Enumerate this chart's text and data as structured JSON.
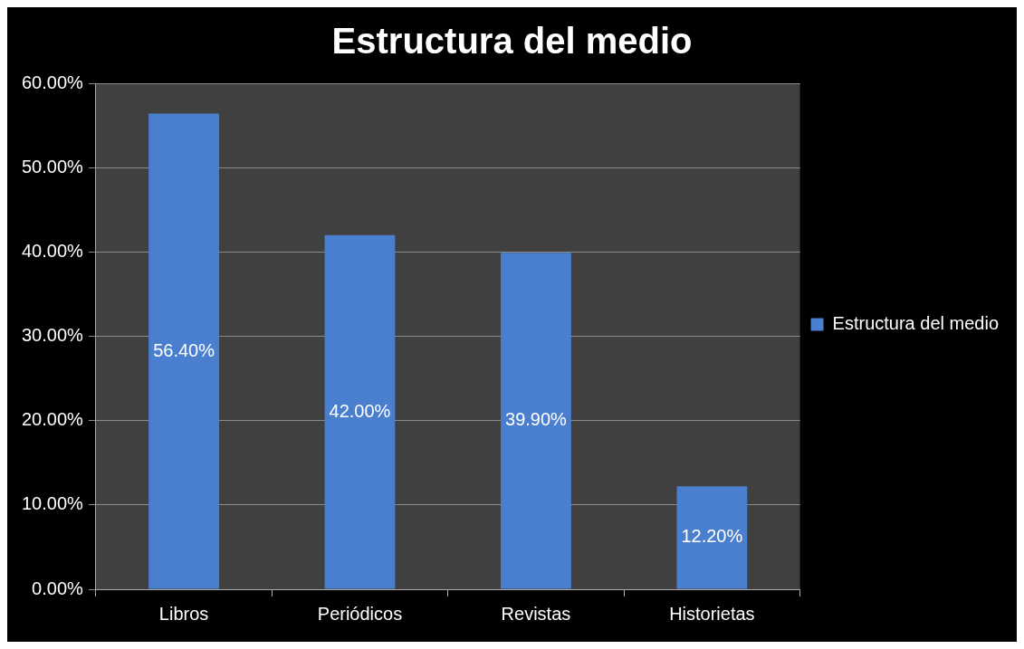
{
  "chart_data": {
    "type": "bar",
    "title": "Estructura del medio",
    "categories": [
      "Libros",
      "Periódicos",
      "Revistas",
      "Historietas"
    ],
    "series": [
      {
        "name": "Estructura del medio",
        "color": "#4a7fd0",
        "values": [
          56.4,
          42.0,
          39.9,
          12.2
        ],
        "value_labels": [
          "56.40%",
          "42.00%",
          "39.90%",
          "12.20%"
        ]
      }
    ],
    "ylim": [
      0,
      60
    ],
    "yticks": [
      {
        "value": 0,
        "label": "0.00%"
      },
      {
        "value": 10,
        "label": "10.00%"
      },
      {
        "value": 20,
        "label": "20.00%"
      },
      {
        "value": 30,
        "label": "30.00%"
      },
      {
        "value": 40,
        "label": "40.00%"
      },
      {
        "value": 50,
        "label": "50.00%"
      },
      {
        "value": 60,
        "label": "60.00%"
      }
    ],
    "grid": "y",
    "legend": "right"
  }
}
